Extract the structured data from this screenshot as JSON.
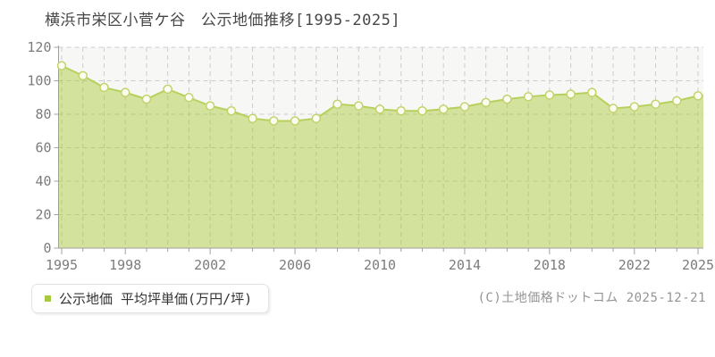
{
  "title": "横浜市栄区小菅ケ谷　公示地価推移[1995-2025]",
  "legend": {
    "label": "公示地価 平均坪単価(万円/坪)",
    "marker_color": "#a6c93e"
  },
  "copyright": "(C)土地価格ドットコム 2025-12-21",
  "chart_data": {
    "type": "area",
    "title": "横浜市栄区小菅ケ谷 公示地価推移[1995-2025]",
    "series_name": "公示地価 平均坪単価(万円/坪)",
    "x": [
      1995,
      1996,
      1997,
      1998,
      1999,
      2000,
      2001,
      2002,
      2003,
      2004,
      2005,
      2006,
      2007,
      2008,
      2009,
      2010,
      2011,
      2012,
      2013,
      2014,
      2015,
      2016,
      2017,
      2018,
      2019,
      2020,
      2021,
      2022,
      2023,
      2024,
      2025
    ],
    "values": [
      109,
      103,
      96,
      93,
      89,
      95,
      90,
      85,
      82,
      77.5,
      76,
      76,
      77.5,
      86,
      85,
      83,
      82,
      82,
      83,
      84.5,
      87,
      89,
      90.5,
      91.5,
      92,
      93,
      83.5,
      84.5,
      86,
      88,
      91
    ],
    "ylim": [
      0,
      120
    ],
    "yticks": [
      0,
      20,
      40,
      60,
      80,
      100,
      120
    ],
    "xtick_labels": [
      1995,
      1998,
      2002,
      2006,
      2010,
      2014,
      2018,
      2022,
      2025
    ],
    "grid": true,
    "legend_position": "bottom-left",
    "colors": {
      "fill": "#a7c734",
      "fill_opacity": 0.45,
      "line": "#b6d05c",
      "marker_fill": "#fcfdf2",
      "marker_stroke": "#c3d36b",
      "grid": "#cccccc",
      "axis": "#a0a0a0",
      "plot_bg": "#f7f7f5",
      "tick_label": "#7c7c7c"
    }
  }
}
